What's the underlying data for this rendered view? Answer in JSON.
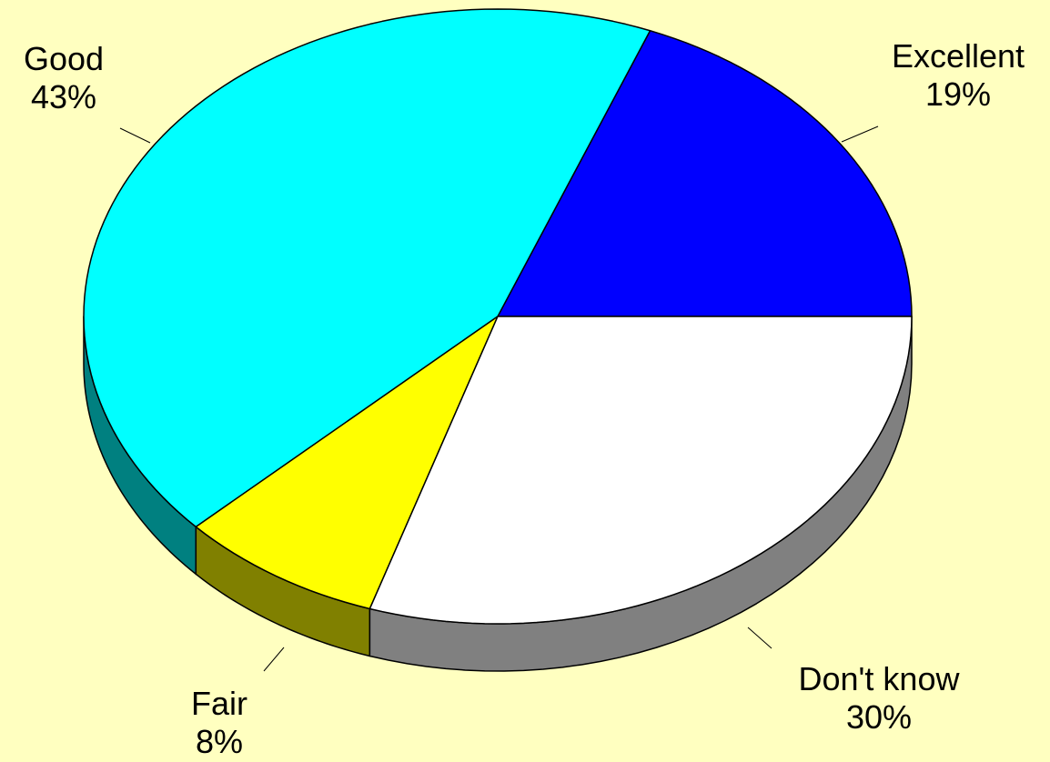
{
  "chart_data": {
    "type": "pie",
    "style": "3d",
    "background_color": "#ffffc0",
    "start_angle_deg": 0,
    "direction": "counterclockwise",
    "slices": [
      {
        "label": "Excellent",
        "value": 19,
        "value_label": "19%",
        "color": "#0000ff",
        "side_color": "#00007f"
      },
      {
        "label": "Good",
        "value": 43,
        "value_label": "43%",
        "color": "#00ffff",
        "side_color": "#008080"
      },
      {
        "label": "Fair",
        "value": 8,
        "value_label": "8%",
        "color": "#ffff00",
        "side_color": "#808000"
      },
      {
        "label": "Don't know",
        "value": 30,
        "value_label": "30%",
        "color": "#ffffff",
        "side_color": "#808080"
      }
    ]
  }
}
